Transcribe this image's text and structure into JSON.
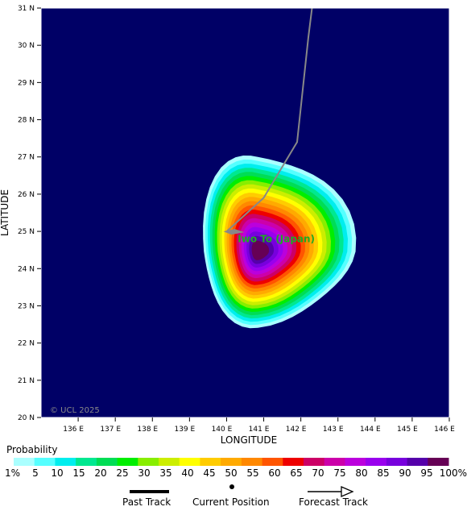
{
  "map": {
    "lat_label": "LATITUDE",
    "lon_label": "LONGITUDE",
    "lat_ticks": [
      "20 N",
      "21 N",
      "22 N",
      "23 N",
      "24 N",
      "25 N",
      "26 N",
      "27 N",
      "28 N",
      "29 N",
      "30 N",
      "31 N"
    ],
    "lon_ticks": [
      "136 E",
      "137 E",
      "138 E",
      "139 E",
      "140 E",
      "141 E",
      "142 E",
      "143 E",
      "144 E",
      "145 E",
      "146 E"
    ],
    "lon_range": [
      135,
      146
    ],
    "lat_range": [
      20,
      31
    ],
    "background_color": "#000066",
    "copyright": "© UCL 2025",
    "location_label": "Iwo To (Japan)",
    "location": {
      "lon": 140.3,
      "lat": 24.8
    },
    "storm_position": {
      "lon": 140.0,
      "lat": 25.0
    },
    "track": [
      {
        "lon": 140.0,
        "lat": 25.0
      },
      {
        "lon": 141.0,
        "lat": 25.9
      },
      {
        "lon": 141.9,
        "lat": 27.4
      },
      {
        "lon": 142.2,
        "lat": 30.2
      },
      {
        "lon": 142.3,
        "lat": 31.0
      }
    ],
    "track_color": "#888888",
    "probability_center": {
      "lon": 140.8,
      "lat": 24.35
    }
  },
  "legend": {
    "title": "Probability",
    "levels": [
      "1%",
      "5",
      "10",
      "15",
      "20",
      "25",
      "30",
      "35",
      "40",
      "45",
      "50",
      "55",
      "60",
      "65",
      "70",
      "75",
      "80",
      "85",
      "90",
      "95",
      "100%"
    ],
    "colors": [
      "#aaffff",
      "#55ffff",
      "#00eeee",
      "#00e890",
      "#00dd55",
      "#00ee00",
      "#88ee00",
      "#ccee00",
      "#ffff00",
      "#ffcc00",
      "#ffaa00",
      "#ff8800",
      "#ff5500",
      "#ee0000",
      "#cc0066",
      "#cc00aa",
      "#bb00dd",
      "#9900ee",
      "#7700dd",
      "#5500aa",
      "#660055"
    ]
  },
  "key": {
    "past_track": "Past Track",
    "current_position": "Current Position",
    "forecast_track": "Forecast Track"
  }
}
